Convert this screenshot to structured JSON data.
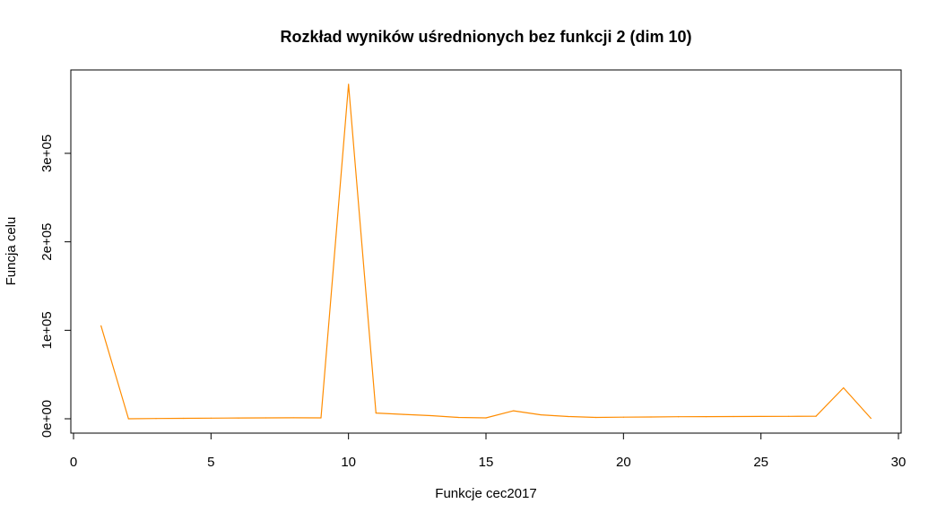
{
  "chart_data": {
    "type": "line",
    "title": "Rozkład wyników uśrednionych bez funkcji 2 (dim 10)",
    "xlabel": "Funkcje cec2017",
    "ylabel": "Funcja celu",
    "xlim": [
      0,
      30
    ],
    "ylim": [
      -10000,
      380000
    ],
    "x_ticks": [
      0,
      5,
      10,
      15,
      20,
      25,
      30
    ],
    "x_tick_labels": [
      "0",
      "5",
      "10",
      "15",
      "20",
      "25",
      "30"
    ],
    "y_ticks": [
      0,
      100000,
      200000,
      300000
    ],
    "y_tick_labels": [
      "0e+00",
      "1e+05",
      "2e+05",
      "3e+05"
    ],
    "grid": false,
    "line_color": "#ff8c00",
    "series": [
      {
        "x": [
          1,
          2,
          3,
          4,
          5,
          6,
          7,
          8,
          9,
          10,
          11,
          12,
          13,
          14,
          15,
          16,
          17,
          18,
          19,
          20,
          21,
          22,
          23,
          24,
          25,
          26,
          27,
          28,
          29
        ],
        "values": [
          105000,
          0,
          300,
          500,
          700,
          900,
          1000,
          1100,
          1000,
          378000,
          6500,
          5000,
          3500,
          1500,
          1000,
          9000,
          4500,
          2500,
          1500,
          1800,
          2000,
          2300,
          2400,
          2500,
          2600,
          2700,
          2800,
          35000,
          500
        ]
      }
    ]
  }
}
